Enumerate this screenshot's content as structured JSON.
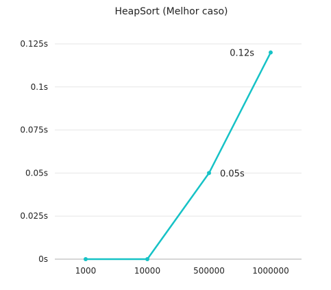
{
  "chart_data": {
    "type": "line",
    "title": "HeapSort (Melhor caso)",
    "xlabel": "",
    "ylabel": "",
    "categories": [
      "1000",
      "10000",
      "500000",
      "1000000"
    ],
    "series": [
      {
        "values": [
          0,
          0,
          0.05,
          0.12
        ],
        "color": "#16c2c6"
      }
    ],
    "ylim": [
      0,
      0.125
    ],
    "yticks": [
      0,
      0.025,
      0.05,
      0.075,
      0.1,
      0.125
    ],
    "ytick_labels": [
      "0s",
      "0.025s",
      "0.05s",
      "0.075s",
      "0.1s",
      "0.125s"
    ],
    "data_labels": [
      {
        "index": 2,
        "text": "0.05s",
        "position": "right"
      },
      {
        "index": 3,
        "text": "0.12s",
        "position": "left"
      }
    ],
    "grid": true,
    "gridline_color": "#e6e6e6",
    "axis_color": "#bdbdbd",
    "legend": "none"
  }
}
